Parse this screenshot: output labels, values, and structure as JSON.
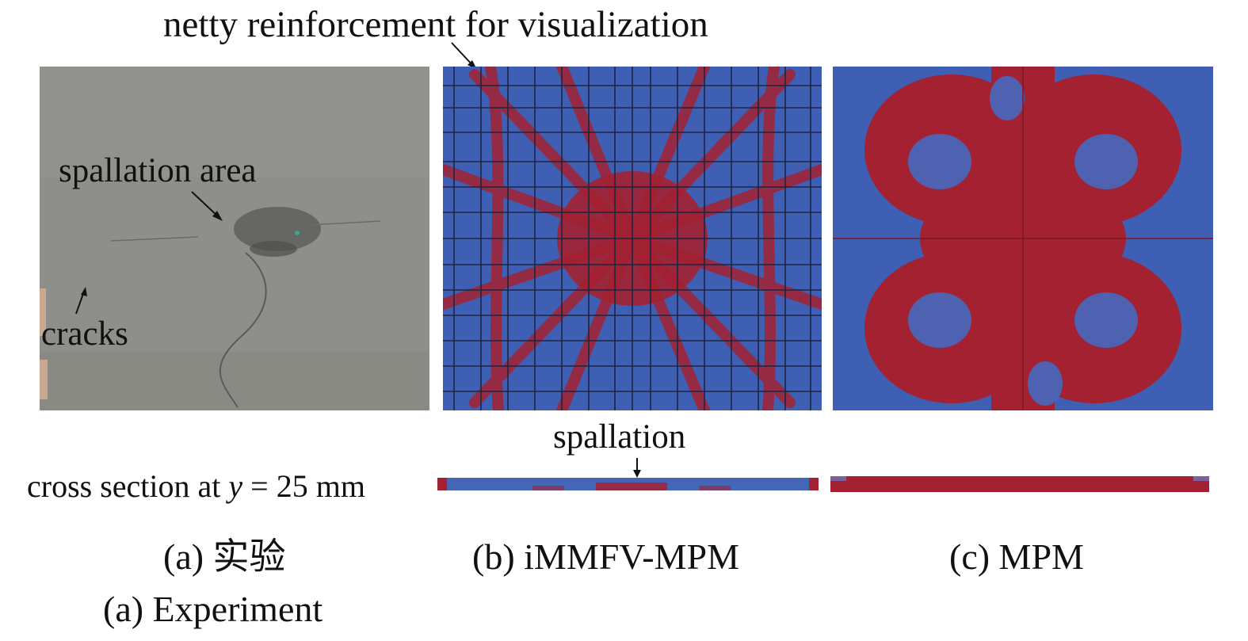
{
  "top_annotation": "netty reinforcement for visualization",
  "photo_labels": {
    "spallation_area": "spallation area",
    "cracks": "cracks"
  },
  "spallation_label": "spallation",
  "cross_section_label": {
    "prefix": "cross section at ",
    "variable": "y",
    "suffix": " = 25 mm"
  },
  "captions": {
    "a_cn": "(a) 实验",
    "a_en": "(a) Experiment",
    "b": "(b) iMMFV-MPM",
    "c": "(c) MPM"
  },
  "colors": {
    "intact": "#3f5fb4",
    "damaged": "#a32131",
    "concrete": "#8e8e8b"
  }
}
